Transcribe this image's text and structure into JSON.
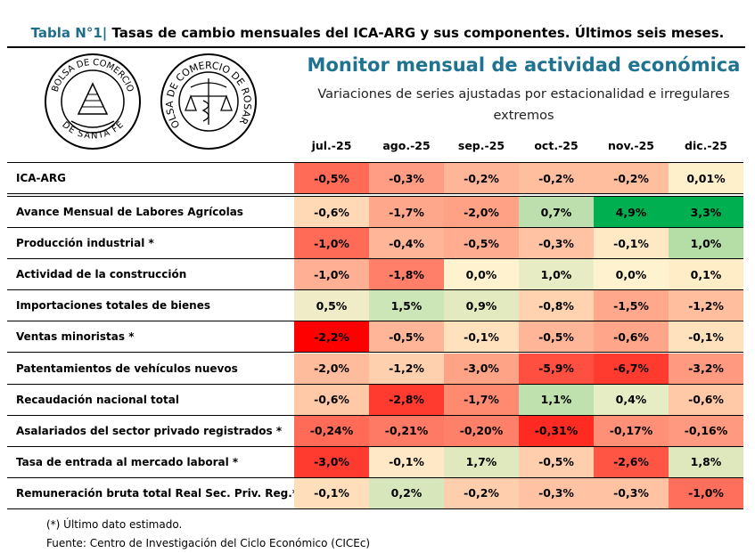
{
  "title": {
    "prefix": "Tabla N°1|",
    "text": "Tasas de cambio mensuales del ICA-ARG y sus componentes. Últimos seis meses."
  },
  "logos": [
    "BOLSA DE COMERCIO DE SANTA FE",
    "BOLSA DE COMERCIO DE ROSARIO"
  ],
  "monitor_title": "Monitor mensual de actividad económica",
  "subtitle": "Variaciones de series ajustadas por estacionalidad e irregulares extremos",
  "columns": [
    "jul.-25",
    "ago.-25",
    "sep.-25",
    "oct.-25",
    "nov.-25",
    "dic.-25"
  ],
  "rows": [
    {
      "label": "ICA-ARG",
      "values": [
        "-0,5%",
        "-0,3%",
        "-0,2%",
        "-0,2%",
        "-0,2%",
        "0,01%"
      ],
      "colors": [
        "#ff6b57",
        "#ff9d84",
        "#ffb598",
        "#ffbf9f",
        "#ffbf9f",
        "#fff0cc"
      ]
    },
    {
      "label": "Avance Mensual de Labores Agrícolas",
      "values": [
        "-0,6%",
        "-1,7%",
        "-2,0%",
        "0,7%",
        "4,9%",
        "3,3%"
      ],
      "colors": [
        "#ffd9b5",
        "#ffa78b",
        "#ffa185",
        "#bddfad",
        "#00b050",
        "#00b050"
      ]
    },
    {
      "label": "Producción industrial *",
      "values": [
        "-1,0%",
        "-0,4%",
        "-0,5%",
        "-0,3%",
        "-0,1%",
        "1,0%"
      ],
      "colors": [
        "#ff6b57",
        "#ffb598",
        "#ffac90",
        "#ffc3a3",
        "#ffe9c4",
        "#b5dda6"
      ]
    },
    {
      "label": "Actividad de la construcción",
      "values": [
        "-1,0%",
        "-1,8%",
        "0,0%",
        "1,0%",
        "0,0%",
        "0,1%"
      ],
      "colors": [
        "#ffaf93",
        "#ff7f68",
        "#fff2cf",
        "#e8ecc4",
        "#fff2cf",
        "#ffedc8"
      ]
    },
    {
      "label": "Importaciones totales de bienes",
      "values": [
        "0,5%",
        "1,5%",
        "0,9%",
        "-0,8%",
        "-1,5%",
        "-1,2%"
      ],
      "colors": [
        "#f0ecc8",
        "#cde6b7",
        "#e4eac0",
        "#ffd3b0",
        "#ffa88c",
        "#ffbf9f"
      ]
    },
    {
      "label": "Ventas minoristas *",
      "values": [
        "-2,2%",
        "-0,5%",
        "-0,1%",
        "-0,5%",
        "-0,6%",
        "-0,1%"
      ],
      "colors": [
        "#ff0000",
        "#ffb598",
        "#ffe2bd",
        "#ffb598",
        "#ffa589",
        "#ffe2bd"
      ]
    },
    {
      "label": "Patentamientos de vehículos nuevos",
      "values": [
        "-2,0%",
        "-1,2%",
        "-3,0%",
        "-5,9%",
        "-6,7%",
        "-3,2%"
      ],
      "colors": [
        "#ffbc9c",
        "#ffd0ad",
        "#ffa387",
        "#ff4f40",
        "#ff3b30",
        "#ff9a80"
      ]
    },
    {
      "label": "Recaudación nacional total",
      "values": [
        "-0,6%",
        "-2,8%",
        "-1,7%",
        "1,1%",
        "0,4%",
        "-0,6%"
      ],
      "colors": [
        "#ffc8a7",
        "#ff3b30",
        "#ff8a70",
        "#bfe1ae",
        "#e6ecc3",
        "#ffc8a7"
      ]
    },
    {
      "label": "Asalariados del sector privado registrados *",
      "values": [
        "-0,24%",
        "-0,21%",
        "-0,20%",
        "-0,31%",
        "-0,17%",
        "-0,16%"
      ],
      "colors": [
        "#ff6b57",
        "#ff7a64",
        "#ff8068",
        "#ff2a22",
        "#ff9078",
        "#ff9a80"
      ]
    },
    {
      "label": "Tasa de entrada al mercado laboral *",
      "values": [
        "-3,0%",
        "-0,1%",
        "1,7%",
        "-0,5%",
        "-2,6%",
        "1,8%"
      ],
      "colors": [
        "#ff3a2e",
        "#ffe8c5",
        "#e0e8bd",
        "#ffcfad",
        "#ff5545",
        "#dfe7bd"
      ]
    },
    {
      "label": "Remuneración bruta total Real Sec. Priv. Reg.*",
      "values": [
        "-0,1%",
        "0,2%",
        "-0,2%",
        "-0,3%",
        "-0,3%",
        "-1,0%"
      ],
      "colors": [
        "#ffdfbb",
        "#d8e6bb",
        "#ffceac",
        "#ffc3a3",
        "#ffc3a3",
        "#ff6f5b"
      ]
    }
  ],
  "footer": {
    "note": "(*) Último dato estimado.",
    "source": "Fuente: Centro de Investigación del Ciclo Económico (CICEc)"
  }
}
